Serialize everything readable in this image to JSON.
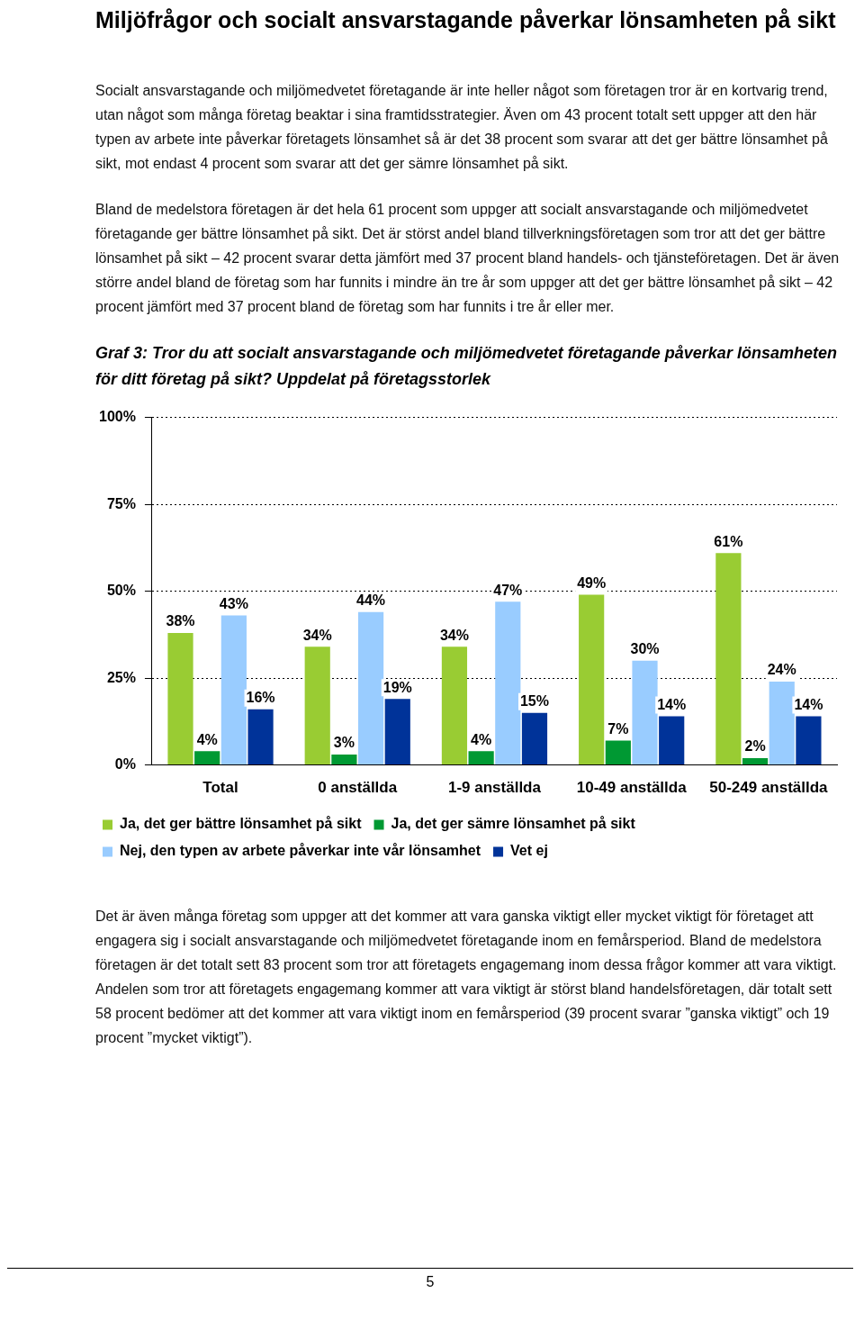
{
  "chart_data": {
    "type": "bar",
    "title": "Graf 3: Tror du att socialt ansvarstagande och miljömedvetet företagande påverkar lönsamheten för ditt företag på sikt? Uppdelat på företagsstorlek",
    "categories": [
      "Total",
      "0 anställda",
      "1-9 anställda",
      "10-49 anställda",
      "50-249 anställda"
    ],
    "series": [
      {
        "name": "Ja, det ger bättre lönsamhet på sikt",
        "color": "#99cc33",
        "values": [
          38,
          34,
          34,
          49,
          61
        ],
        "value_labels": [
          "38%",
          "34%",
          "34%",
          "49%",
          "61%"
        ]
      },
      {
        "name": "Ja, det ger sämre lönsamhet på sikt",
        "color": "#009933",
        "values": [
          4,
          3,
          4,
          7,
          2
        ],
        "value_labels": [
          "4%",
          "3%",
          "4%",
          "7%",
          "2%"
        ]
      },
      {
        "name": "Nej, den typen av arbete påverkar inte vår lönsamhet",
        "color": "#99ccff",
        "values": [
          43,
          44,
          47,
          30,
          24
        ],
        "value_labels": [
          "43%",
          "44%",
          "47%",
          "30%",
          "24%"
        ]
      },
      {
        "name": "Vet ej",
        "color": "#003399",
        "values": [
          16,
          19,
          15,
          14,
          14
        ],
        "value_labels": [
          "16%",
          "19%",
          "15%",
          "14%",
          "14%"
        ]
      }
    ],
    "ylim": [
      0,
      100
    ],
    "yticks": [
      {
        "value": 0,
        "label": "0%"
      },
      {
        "value": 25,
        "label": "25%"
      },
      {
        "value": 50,
        "label": "50%"
      },
      {
        "value": 75,
        "label": "75%"
      },
      {
        "value": 100,
        "label": "100%"
      }
    ],
    "grid": "y",
    "legend": "bottom",
    "annotations": [
      "Miljöfrågor och socialt ansvarstagande påverkar lönsamheten på sikt",
      "Socialt ansvarstagande och miljömedvetet företagande är inte heller något som företagen tror är en kortvarig trend, utan något som många företag beaktar i sina framtidsstrategier. Även om 43 procent totalt sett uppger att den här typen av arbete inte påverkar företagets lönsamhet så är det 38 procent som svarar att det ger bättre lönsamhet på sikt, mot endast 4 procent som svarar att det ger sämre lönsamhet på sikt.",
      "Bland de medelstora företagen är det hela 61 procent som uppger att socialt ansvarstagande och miljömedvetet företagande ger bättre lönsamhet på sikt. Det är störst andel bland tillverkningsföretagen som tror att det ger bättre lönsamhet på sikt – 42 procent svarar detta jämfört med 37 procent bland handels- och tjänsteföretagen. Det är även större andel bland de företag som har funnits i mindre än tre år som uppger att det ger bättre lönsamhet på sikt – 42 procent jämfört med 37 procent bland de företag som har funnits i tre år eller mer.",
      "Det är även många företag som uppger att det kommer att vara ganska viktigt eller mycket viktigt för företaget att engagera sig i socialt ansvarstagande och miljömedvetet företagande inom en femårsperiod. Bland de medelstora företagen är det totalt sett 83 procent som tror att företagets engagemang inom dessa frågor kommer att vara viktigt. Andelen som tror att företagets engagemang kommer att vara viktigt är störst bland handelsföretagen, där totalt sett 58 procent bedömer att det kommer att vara viktigt inom en femårsperiod (39 procent svarar ”ganska viktigt” och 19 procent ”mycket viktigt”).",
      "5"
    ]
  }
}
